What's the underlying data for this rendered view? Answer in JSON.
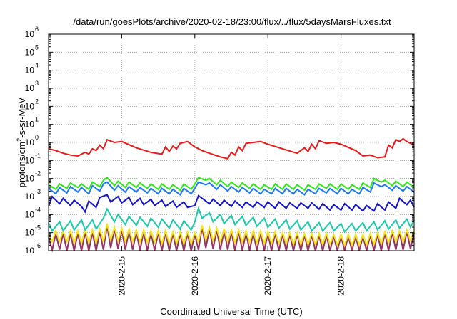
{
  "chart_data": {
    "type": "line",
    "title": "/data/run/goesPlots/archive/2020-02-18/23:00/flux/../flux/5daysMarsFluxes.txt",
    "xlabel": "Coordinated Universal Time (UTC)",
    "ylabel_parts": [
      "protons/cm",
      "2",
      "-s-sr-MeV"
    ],
    "yscale": "log",
    "ylim_exp": [
      -6,
      6
    ],
    "xlim_days": [
      14.0,
      19.0
    ],
    "grid": true,
    "x_ticks": [
      {
        "label": "2020-2-15",
        "day": 15
      },
      {
        "label": "2020-2-16",
        "day": 16
      },
      {
        "label": "2020-2-17",
        "day": 17
      },
      {
        "label": "2020-2-18",
        "day": 18
      }
    ],
    "y_ticks": [
      {
        "base": "10",
        "exp": "-6",
        "value": -6
      },
      {
        "base": "10",
        "exp": "-5",
        "value": -5
      },
      {
        "base": "10",
        "exp": "-4",
        "value": -4
      },
      {
        "base": "10",
        "exp": "-3",
        "value": -3
      },
      {
        "base": "10",
        "exp": "-2",
        "value": -2
      },
      {
        "base": "10",
        "exp": "-1",
        "value": -1
      },
      {
        "base": "10",
        "exp": "0",
        "value": 0
      },
      {
        "base": "10",
        "exp": "1",
        "value": 1
      },
      {
        "base": "10",
        "exp": "2",
        "value": 2
      },
      {
        "base": "10",
        "exp": "3",
        "value": 3
      },
      {
        "base": "10",
        "exp": "4",
        "value": 4
      },
      {
        "base": "10",
        "exp": "5",
        "value": 5
      },
      {
        "base": "10",
        "exp": "6",
        "value": 6
      }
    ],
    "series": [
      {
        "color": "#e8191b",
        "x": [
          14.0,
          14.1,
          14.2,
          14.3,
          14.4,
          14.5,
          14.55,
          14.6,
          14.65,
          14.7,
          14.75,
          14.8,
          14.9,
          15.0,
          15.2,
          15.4,
          15.55,
          15.6,
          15.65,
          15.7,
          15.75,
          15.8,
          15.9,
          16.0,
          16.1,
          16.2,
          16.35,
          16.45,
          16.5,
          16.55,
          16.6,
          16.65,
          16.7,
          16.8,
          16.9,
          17.0,
          17.2,
          17.4,
          17.5,
          17.55,
          17.6,
          17.65,
          17.7,
          17.8,
          17.9,
          18.0,
          18.2,
          18.3,
          18.4,
          18.5,
          18.6,
          18.65,
          18.7,
          18.75,
          18.8,
          18.85,
          18.9,
          19.0
        ],
        "y": [
          -0.35,
          -0.45,
          -0.6,
          -0.7,
          -0.75,
          -0.55,
          -0.65,
          -0.35,
          -0.45,
          -0.15,
          -0.35,
          0.15,
          0.0,
          0.05,
          -0.3,
          -0.55,
          -0.65,
          -0.25,
          -0.5,
          -0.2,
          -0.35,
          -0.05,
          0.05,
          -0.25,
          -0.45,
          -0.6,
          -0.8,
          -0.9,
          -0.55,
          -0.7,
          -0.25,
          -0.45,
          -0.05,
          0.0,
          0.05,
          -0.1,
          -0.35,
          -0.6,
          -0.3,
          -0.5,
          -0.1,
          -0.35,
          0.1,
          -0.05,
          0.0,
          -0.1,
          -0.45,
          -0.75,
          -0.7,
          -0.85,
          -0.8,
          -0.15,
          -0.3,
          0.15,
          0.05,
          0.2,
          0.05,
          -0.15
        ]
      },
      {
        "color": "#32e61e",
        "x": [
          14.0,
          14.1,
          14.15,
          14.25,
          14.3,
          14.4,
          14.45,
          14.55,
          14.6,
          14.7,
          14.75,
          14.8,
          14.9,
          14.95,
          15.05,
          15.1,
          15.2,
          15.25,
          15.35,
          15.4,
          15.5,
          15.55,
          15.65,
          15.7,
          15.8,
          15.85,
          15.95,
          16.0,
          16.05,
          16.15,
          16.2,
          16.3,
          16.35,
          16.45,
          16.5,
          16.6,
          16.65,
          16.75,
          16.8,
          16.9,
          16.95,
          17.05,
          17.1,
          17.2,
          17.25,
          17.35,
          17.4,
          17.5,
          17.55,
          17.65,
          17.7,
          17.8,
          17.85,
          17.95,
          18.0,
          18.1,
          18.15,
          18.25,
          18.3,
          18.4,
          18.45,
          18.55,
          18.6,
          18.7,
          18.75,
          18.85,
          18.9,
          19.0
        ],
        "y": [
          -2.35,
          -2.6,
          -2.3,
          -2.55,
          -2.25,
          -2.5,
          -2.3,
          -2.6,
          -2.2,
          -2.45,
          -2.1,
          -1.95,
          -2.4,
          -2.15,
          -2.5,
          -2.2,
          -2.5,
          -2.25,
          -2.55,
          -2.3,
          -2.6,
          -2.3,
          -2.6,
          -2.35,
          -2.65,
          -2.3,
          -2.6,
          -2.3,
          -1.95,
          -2.1,
          -2.0,
          -2.35,
          -2.1,
          -2.45,
          -2.2,
          -2.5,
          -2.25,
          -2.55,
          -2.3,
          -2.6,
          -2.35,
          -2.6,
          -2.3,
          -2.6,
          -2.3,
          -2.6,
          -2.35,
          -2.65,
          -2.35,
          -2.6,
          -2.3,
          -2.55,
          -2.3,
          -2.6,
          -2.3,
          -2.6,
          -2.35,
          -2.6,
          -2.25,
          -2.5,
          -2.0,
          -2.2,
          -2.1,
          -2.4,
          -2.15,
          -2.45,
          -2.2,
          -2.5
        ]
      },
      {
        "color": "#1e78f0",
        "x": [
          14.0,
          14.1,
          14.15,
          14.25,
          14.3,
          14.4,
          14.45,
          14.55,
          14.6,
          14.7,
          14.75,
          14.8,
          14.9,
          14.95,
          15.05,
          15.1,
          15.2,
          15.25,
          15.35,
          15.4,
          15.5,
          15.55,
          15.65,
          15.7,
          15.8,
          15.85,
          15.95,
          16.0,
          16.05,
          16.15,
          16.2,
          16.3,
          16.35,
          16.45,
          16.5,
          16.6,
          16.65,
          16.75,
          16.8,
          16.9,
          16.95,
          17.05,
          17.1,
          17.2,
          17.25,
          17.35,
          17.4,
          17.5,
          17.55,
          17.65,
          17.7,
          17.8,
          17.85,
          17.95,
          18.0,
          18.1,
          18.15,
          18.25,
          18.3,
          18.4,
          18.45,
          18.55,
          18.6,
          18.7,
          18.75,
          18.85,
          18.9,
          19.0
        ],
        "y": [
          -2.55,
          -2.85,
          -2.5,
          -2.8,
          -2.45,
          -2.75,
          -2.5,
          -2.85,
          -2.4,
          -2.7,
          -2.3,
          -2.2,
          -2.65,
          -2.4,
          -2.75,
          -2.45,
          -2.75,
          -2.5,
          -2.8,
          -2.55,
          -2.85,
          -2.55,
          -2.85,
          -2.6,
          -2.9,
          -2.55,
          -2.85,
          -2.55,
          -2.2,
          -2.35,
          -2.25,
          -2.6,
          -2.35,
          -2.7,
          -2.45,
          -2.75,
          -2.5,
          -2.8,
          -2.55,
          -2.85,
          -2.6,
          -2.85,
          -2.55,
          -2.85,
          -2.55,
          -2.85,
          -2.6,
          -2.9,
          -2.6,
          -2.85,
          -2.55,
          -2.8,
          -2.55,
          -2.85,
          -2.55,
          -2.85,
          -2.6,
          -2.85,
          -2.5,
          -2.75,
          -2.25,
          -2.45,
          -2.35,
          -2.65,
          -2.4,
          -2.7,
          -2.45,
          -2.75
        ]
      },
      {
        "color": "#1414cc",
        "x": [
          14.0,
          14.05,
          14.15,
          14.2,
          14.3,
          14.35,
          14.45,
          14.5,
          14.55,
          14.65,
          14.7,
          14.8,
          14.85,
          14.95,
          15.0,
          15.1,
          15.15,
          15.25,
          15.3,
          15.4,
          15.45,
          15.55,
          15.6,
          15.7,
          15.75,
          15.85,
          15.9,
          16.0,
          16.05,
          16.1,
          16.2,
          16.25,
          16.35,
          16.4,
          16.5,
          16.55,
          16.65,
          16.7,
          16.8,
          16.85,
          16.95,
          17.0,
          17.1,
          17.15,
          17.25,
          17.3,
          17.4,
          17.45,
          17.55,
          17.6,
          17.7,
          17.75,
          17.85,
          17.9,
          18.0,
          18.05,
          18.15,
          18.2,
          18.3,
          18.35,
          18.45,
          18.5,
          18.6,
          18.65,
          18.75,
          18.8,
          18.9,
          18.95,
          19.0
        ],
        "y": [
          -3.55,
          -3.0,
          -3.4,
          -3.1,
          -3.5,
          -3.2,
          -3.55,
          -3.85,
          -3.25,
          -3.6,
          -3.05,
          -2.9,
          -3.3,
          -3.0,
          -3.35,
          -3.05,
          -3.45,
          -3.1,
          -3.45,
          -3.15,
          -3.5,
          -3.2,
          -3.55,
          -3.25,
          -3.6,
          -3.3,
          -3.6,
          -3.5,
          -2.95,
          -3.1,
          -3.4,
          -3.15,
          -3.5,
          -3.2,
          -3.55,
          -3.25,
          -3.6,
          -3.3,
          -3.6,
          -3.3,
          -3.6,
          -3.3,
          -3.65,
          -3.3,
          -3.65,
          -3.35,
          -3.65,
          -3.35,
          -3.65,
          -3.35,
          -3.7,
          -3.4,
          -3.75,
          -3.45,
          -3.75,
          -3.4,
          -3.75,
          -3.45,
          -3.8,
          -3.5,
          -3.8,
          -3.4,
          -3.75,
          -3.3,
          -3.65,
          -3.1,
          -3.45,
          -3.2,
          -3.6
        ]
      },
      {
        "color": "#1ec8aa",
        "x": [
          14.0,
          14.05,
          14.15,
          14.2,
          14.3,
          14.35,
          14.45,
          14.5,
          14.6,
          14.65,
          14.75,
          14.8,
          14.9,
          14.95,
          15.05,
          15.1,
          15.2,
          15.25,
          15.35,
          15.4,
          15.5,
          15.55,
          15.65,
          15.7,
          15.8,
          15.85,
          15.95,
          16.0,
          16.05,
          16.1,
          16.2,
          16.25,
          16.35,
          16.4,
          16.5,
          16.55,
          16.65,
          16.7,
          16.8,
          16.85,
          16.95,
          17.0,
          17.1,
          17.15,
          17.25,
          17.3,
          17.4,
          17.45,
          17.55,
          17.6,
          17.7,
          17.75,
          17.85,
          17.9,
          18.0,
          18.05,
          18.15,
          18.2,
          18.3,
          18.35,
          18.45,
          18.5,
          18.6,
          18.65,
          18.75,
          18.8,
          18.9,
          18.95,
          19.0
        ],
        "y": [
          -4.45,
          -4.9,
          -4.4,
          -4.9,
          -4.35,
          -4.85,
          -4.3,
          -4.85,
          -4.3,
          -4.8,
          -4.2,
          -3.7,
          -4.4,
          -4.0,
          -4.55,
          -4.1,
          -4.6,
          -4.15,
          -4.65,
          -4.2,
          -4.7,
          -4.25,
          -4.75,
          -4.3,
          -4.8,
          -4.35,
          -4.85,
          -4.4,
          -3.65,
          -4.2,
          -3.9,
          -4.4,
          -4.0,
          -4.5,
          -4.05,
          -4.55,
          -4.1,
          -4.6,
          -4.15,
          -4.65,
          -4.2,
          -4.7,
          -4.25,
          -4.75,
          -4.3,
          -4.8,
          -4.35,
          -4.85,
          -4.4,
          -4.9,
          -4.45,
          -4.9,
          -4.45,
          -4.9,
          -4.5,
          -4.95,
          -4.5,
          -4.9,
          -4.45,
          -4.9,
          -4.4,
          -4.85,
          -4.35,
          -4.8,
          -4.3,
          -4.75,
          -4.25,
          -4.7,
          -4.3
        ]
      },
      {
        "color": "#f0e614",
        "x": [
          14.0,
          14.05,
          14.1,
          14.15,
          14.2,
          14.25,
          14.3,
          14.35,
          14.4,
          14.45,
          14.5,
          14.55,
          14.6,
          14.65,
          14.7,
          14.75,
          14.8,
          14.85,
          14.9,
          14.95,
          15.0,
          15.05,
          15.1,
          15.15,
          15.2,
          15.25,
          15.3,
          15.35,
          15.4,
          15.45,
          15.5,
          15.55,
          15.6,
          15.65,
          15.7,
          15.75,
          15.8,
          15.85,
          15.9,
          15.95,
          16.0,
          16.05,
          16.1,
          16.15,
          16.2,
          16.25,
          16.3,
          16.35,
          16.4,
          16.45,
          16.5,
          16.55,
          16.6,
          16.65,
          16.7,
          16.75,
          16.8,
          16.85,
          16.9,
          16.95,
          17.0,
          17.05,
          17.1,
          17.15,
          17.2,
          17.25,
          17.3,
          17.35,
          17.4,
          17.45,
          17.5,
          17.55,
          17.6,
          17.65,
          17.7,
          17.75,
          17.8,
          17.85,
          17.9,
          17.95,
          18.0,
          18.05,
          18.1,
          18.15,
          18.2,
          18.25,
          18.3,
          18.35,
          18.4,
          18.45,
          18.5,
          18.55,
          18.6,
          18.65,
          18.7,
          18.75,
          18.8,
          18.85,
          18.9,
          18.95,
          19.0
        ],
        "y": [
          -5.1,
          -5.5,
          -4.9,
          -5.5,
          -4.9,
          -5.5,
          -4.9,
          -5.55,
          -4.9,
          -5.55,
          -4.85,
          -5.55,
          -4.85,
          -5.55,
          -4.8,
          -5.5,
          -4.5,
          -5.4,
          -4.7,
          -5.45,
          -4.75,
          -5.5,
          -4.8,
          -5.5,
          -4.85,
          -5.55,
          -4.85,
          -5.55,
          -4.9,
          -5.55,
          -4.9,
          -5.6,
          -4.9,
          -5.6,
          -4.95,
          -5.6,
          -4.95,
          -5.6,
          -4.95,
          -5.6,
          -5.0,
          -5.5,
          -4.6,
          -5.4,
          -4.7,
          -5.45,
          -4.75,
          -5.5,
          -4.8,
          -5.5,
          -4.85,
          -5.55,
          -4.85,
          -5.55,
          -4.9,
          -5.55,
          -4.9,
          -5.6,
          -4.9,
          -5.6,
          -4.95,
          -5.6,
          -4.95,
          -5.6,
          -5.0,
          -5.6,
          -5.0,
          -5.65,
          -5.0,
          -5.65,
          -5.05,
          -5.65,
          -5.05,
          -5.65,
          -5.05,
          -5.65,
          -5.05,
          -5.65,
          -5.1,
          -5.7,
          -5.1,
          -5.7,
          -5.1,
          -5.7,
          -5.1,
          -5.7,
          -5.1,
          -5.7,
          -5.05,
          -5.65,
          -5.0,
          -5.6,
          -4.95,
          -5.55,
          -4.9,
          -5.5,
          -4.9,
          -5.5,
          -4.85,
          -5.45,
          -4.9
        ]
      },
      {
        "color": "#963264",
        "x": [
          14.0,
          14.05,
          14.1,
          14.15,
          14.2,
          14.25,
          14.3,
          14.35,
          14.4,
          14.45,
          14.5,
          14.55,
          14.6,
          14.65,
          14.7,
          14.75,
          14.8,
          14.85,
          14.9,
          14.95,
          15.0,
          15.05,
          15.1,
          15.15,
          15.2,
          15.25,
          15.3,
          15.35,
          15.4,
          15.45,
          15.5,
          15.55,
          15.6,
          15.65,
          15.7,
          15.75,
          15.8,
          15.85,
          15.9,
          15.95,
          16.0,
          16.05,
          16.1,
          16.15,
          16.2,
          16.25,
          16.3,
          16.35,
          16.4,
          16.45,
          16.5,
          16.55,
          16.6,
          16.65,
          16.7,
          16.75,
          16.8,
          16.85,
          16.9,
          16.95,
          17.0,
          17.05,
          17.1,
          17.15,
          17.2,
          17.25,
          17.3,
          17.35,
          17.4,
          17.45,
          17.5,
          17.55,
          17.6,
          17.65,
          17.7,
          17.75,
          17.8,
          17.85,
          17.9,
          17.95,
          18.0,
          18.05,
          18.1,
          18.15,
          18.2,
          18.25,
          18.3,
          18.35,
          18.4,
          18.45,
          18.5,
          18.55,
          18.6,
          18.65,
          18.7,
          18.75,
          18.8,
          18.85,
          18.9,
          18.95,
          19.0
        ],
        "y": [
          -5.3,
          -5.95,
          -5.05,
          -5.95,
          -5.05,
          -6.0,
          -5.05,
          -6.0,
          -5.05,
          -6.0,
          -5.0,
          -6.0,
          -5.0,
          -6.0,
          -4.95,
          -5.95,
          -4.6,
          -5.85,
          -4.8,
          -5.9,
          -4.85,
          -5.95,
          -4.9,
          -5.95,
          -4.95,
          -6.0,
          -4.95,
          -6.0,
          -5.0,
          -6.0,
          -5.0,
          -6.0,
          -5.0,
          -6.0,
          -5.05,
          -6.0,
          -5.05,
          -6.0,
          -5.05,
          -6.0,
          -5.1,
          -5.95,
          -4.7,
          -5.85,
          -4.8,
          -5.9,
          -4.85,
          -5.95,
          -4.9,
          -5.95,
          -4.95,
          -6.0,
          -4.95,
          -6.0,
          -5.0,
          -6.0,
          -5.0,
          -6.0,
          -5.0,
          -6.0,
          -5.05,
          -6.0,
          -5.05,
          -6.0,
          -5.1,
          -6.0,
          -5.1,
          -6.0,
          -5.1,
          -6.0,
          -5.15,
          -6.0,
          -5.15,
          -6.0,
          -5.15,
          -6.0,
          -5.15,
          -6.0,
          -5.2,
          -6.0,
          -5.2,
          -6.0,
          -5.2,
          -6.0,
          -5.2,
          -6.0,
          -5.2,
          -6.0,
          -5.15,
          -6.0,
          -5.1,
          -6.0,
          -5.05,
          -6.0,
          -5.0,
          -5.95,
          -5.0,
          -5.95,
          -4.95,
          -5.9,
          -5.0
        ]
      }
    ]
  }
}
